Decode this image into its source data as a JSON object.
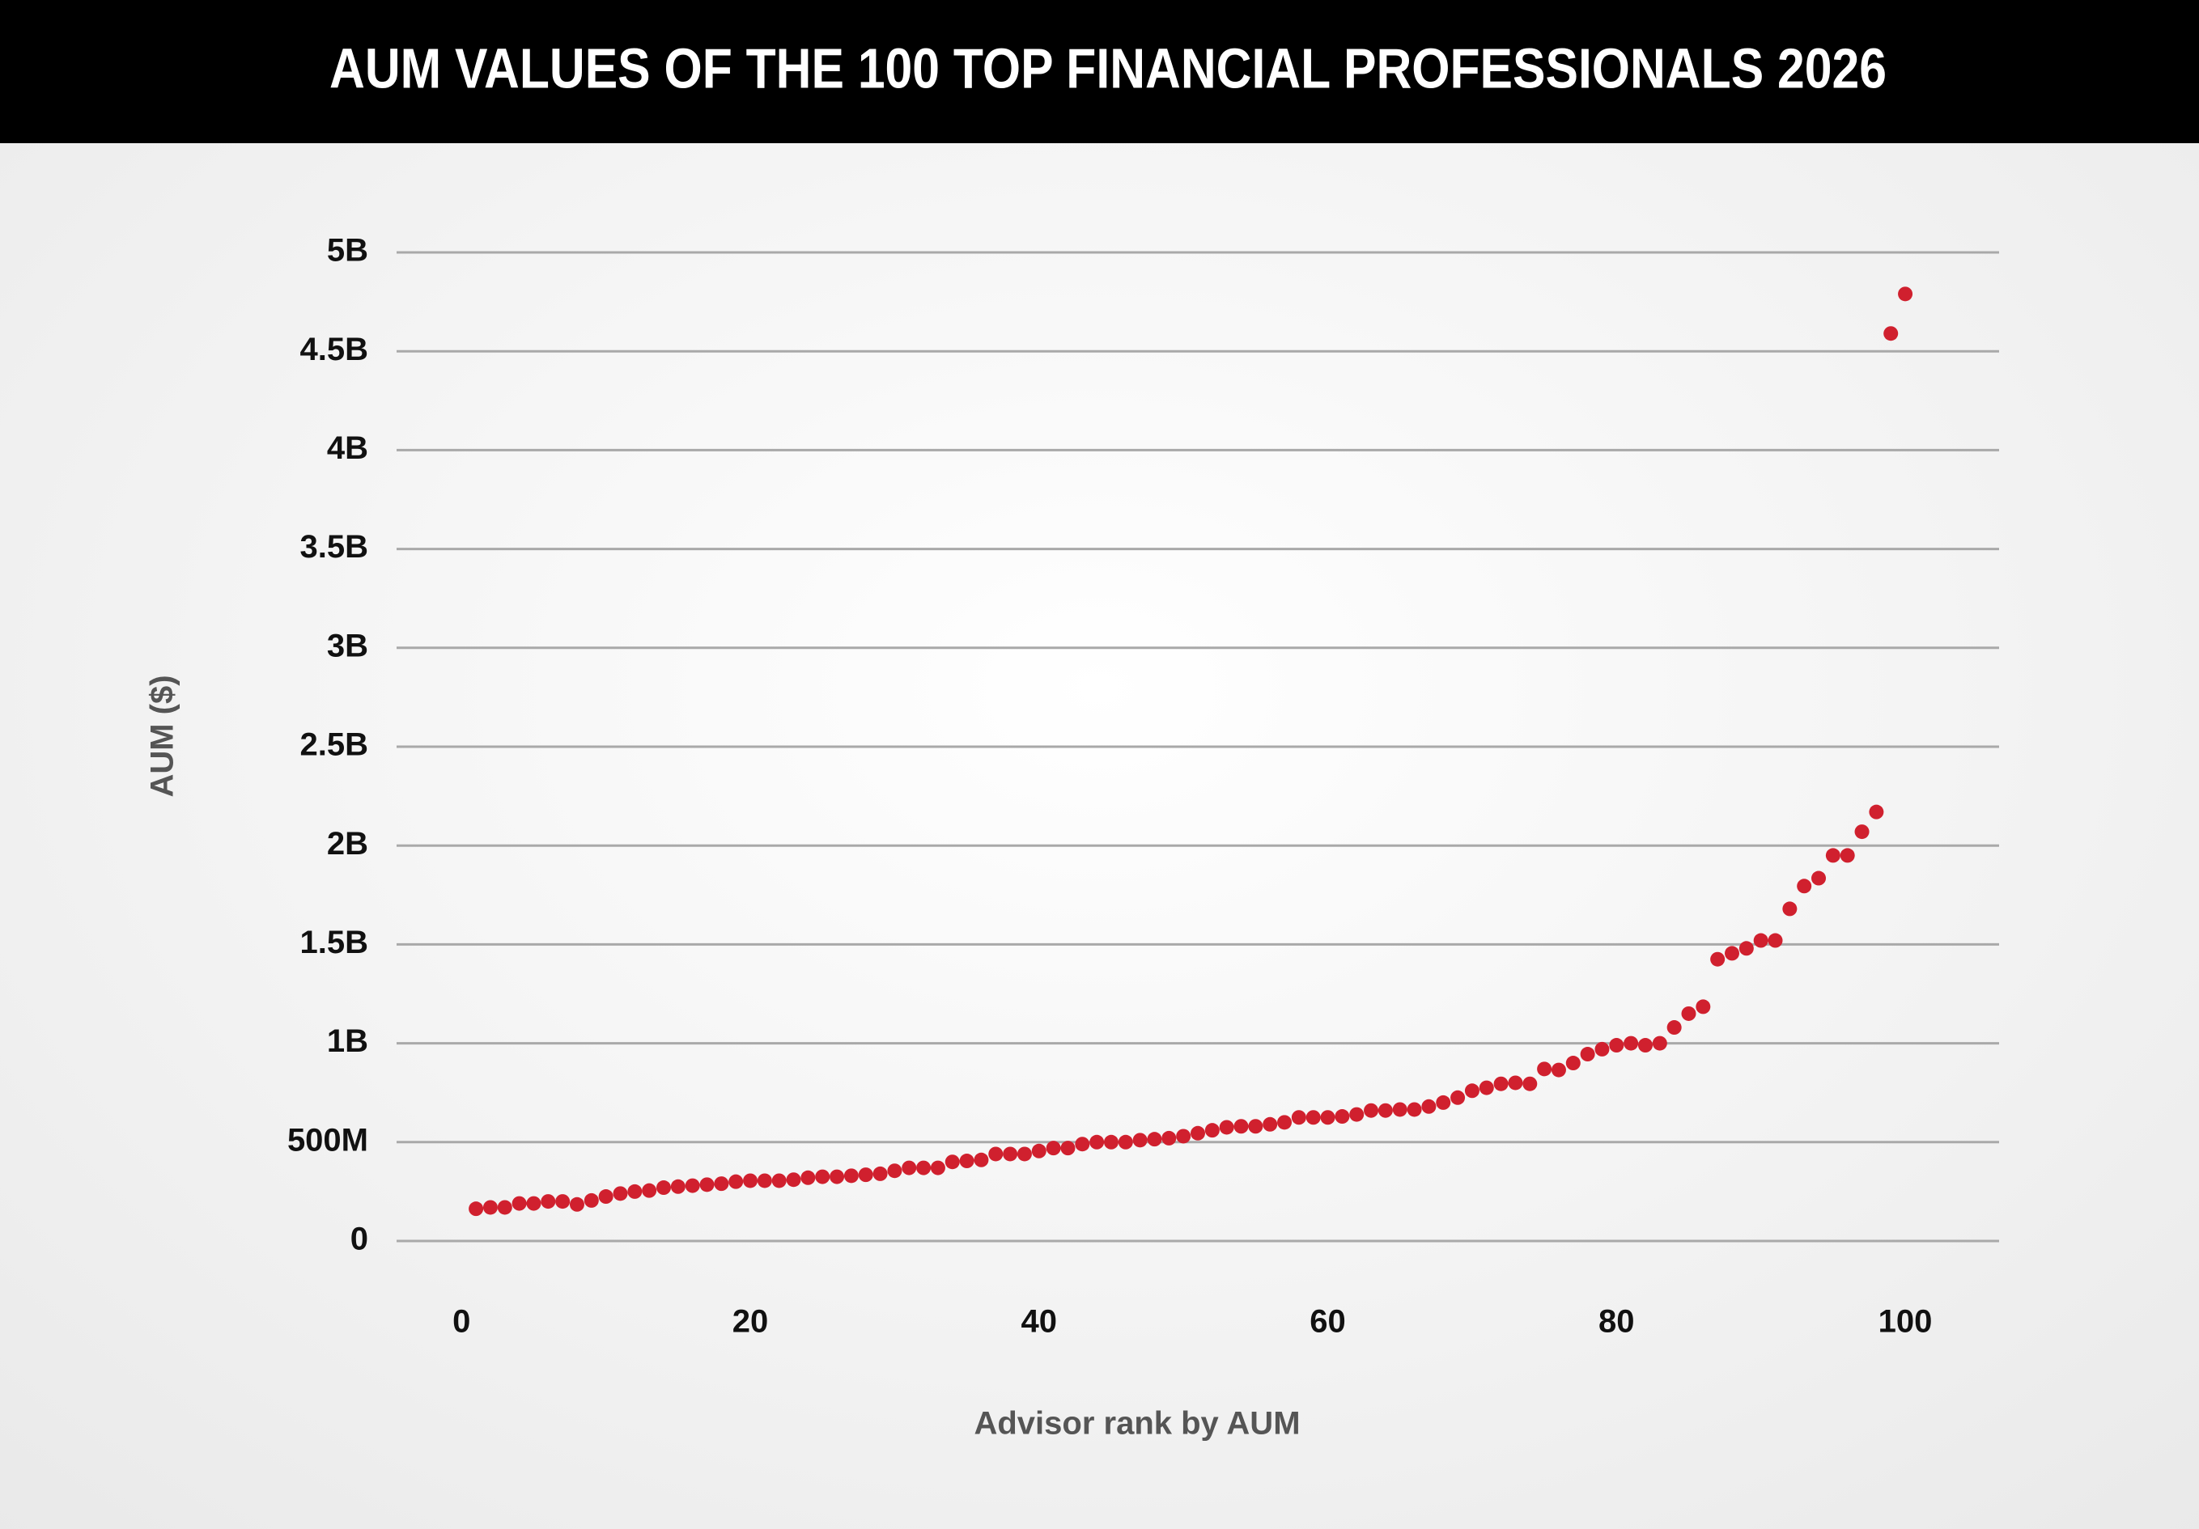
{
  "chart_data": {
    "type": "scatter",
    "title": "AUM VALUES OF THE 100 TOP FINANCIAL PROFESSIONALS 2026",
    "x_label": "Advisor rank by AUM",
    "y_label": "AUM ($)",
    "color": "#d0202e",
    "grid": true,
    "x": [
      1,
      2,
      3,
      4,
      5,
      6,
      7,
      8,
      9,
      10,
      11,
      12,
      13,
      14,
      15,
      16,
      17,
      18,
      19,
      20,
      21,
      22,
      23,
      24,
      25,
      26,
      27,
      28,
      29,
      30,
      31,
      32,
      33,
      34,
      35,
      36,
      37,
      38,
      39,
      40,
      41,
      42,
      43,
      44,
      45,
      46,
      47,
      48,
      49,
      50,
      51,
      52,
      53,
      54,
      55,
      56,
      57,
      58,
      59,
      60,
      61,
      62,
      63,
      64,
      65,
      66,
      67,
      68,
      69,
      70,
      71,
      72,
      73,
      74,
      75,
      76,
      77,
      78,
      79,
      80,
      81,
      82,
      83,
      84,
      85,
      86,
      87,
      88,
      89,
      90,
      91,
      92,
      93,
      94,
      95,
      96,
      97,
      98,
      99,
      100
    ],
    "values": [
      163000000,
      170000000,
      170000000,
      190000000,
      190000000,
      200000000,
      200000000,
      185000000,
      205000000,
      225000000,
      240000000,
      250000000,
      255000000,
      270000000,
      275000000,
      280000000,
      285000000,
      290000000,
      300000000,
      305000000,
      305000000,
      305000000,
      310000000,
      320000000,
      325000000,
      325000000,
      330000000,
      335000000,
      340000000,
      355000000,
      370000000,
      370000000,
      370000000,
      400000000,
      405000000,
      410000000,
      440000000,
      440000000,
      440000000,
      455000000,
      470000000,
      470000000,
      490000000,
      500000000,
      500000000,
      500000000,
      510000000,
      515000000,
      520000000,
      530000000,
      545000000,
      560000000,
      575000000,
      580000000,
      580000000,
      590000000,
      600000000,
      625000000,
      625000000,
      625000000,
      630000000,
      640000000,
      660000000,
      660000000,
      665000000,
      665000000,
      680000000,
      700000000,
      725000000,
      760000000,
      775000000,
      795000000,
      800000000,
      795000000,
      870000000,
      865000000,
      900000000,
      945000000,
      970000000,
      990000000,
      1000000000,
      990000000,
      1000000000,
      1080000000,
      1150000000,
      1185000000,
      1425000000,
      1455000000,
      1480000000,
      1520000000,
      1520000000,
      1680000000,
      1795000000,
      1835000000,
      1950000000,
      1950000000,
      2070000000,
      2170000000,
      4590000000,
      4790000000
    ],
    "xlim": [
      -4.5,
      106.5
    ],
    "xticks": [
      0,
      20,
      40,
      60,
      80,
      100
    ],
    "ylim": [
      0,
      5000000000
    ],
    "yticks": [
      0,
      {
        "value": 500000000,
        "label": "500M"
      },
      {
        "value": 1000000000,
        "label": "1B"
      },
      {
        "value": 1500000000,
        "label": "1.5B"
      },
      {
        "value": 2000000000,
        "label": "2B"
      },
      {
        "value": 2500000000,
        "label": "2.5B"
      },
      {
        "value": 3000000000,
        "label": "3B"
      },
      {
        "value": 3500000000,
        "label": "3.5B"
      },
      {
        "value": 4000000000,
        "label": "4B"
      },
      {
        "value": 4500000000,
        "label": "4.5B"
      },
      {
        "value": 5000000000,
        "label": "5B"
      }
    ]
  }
}
